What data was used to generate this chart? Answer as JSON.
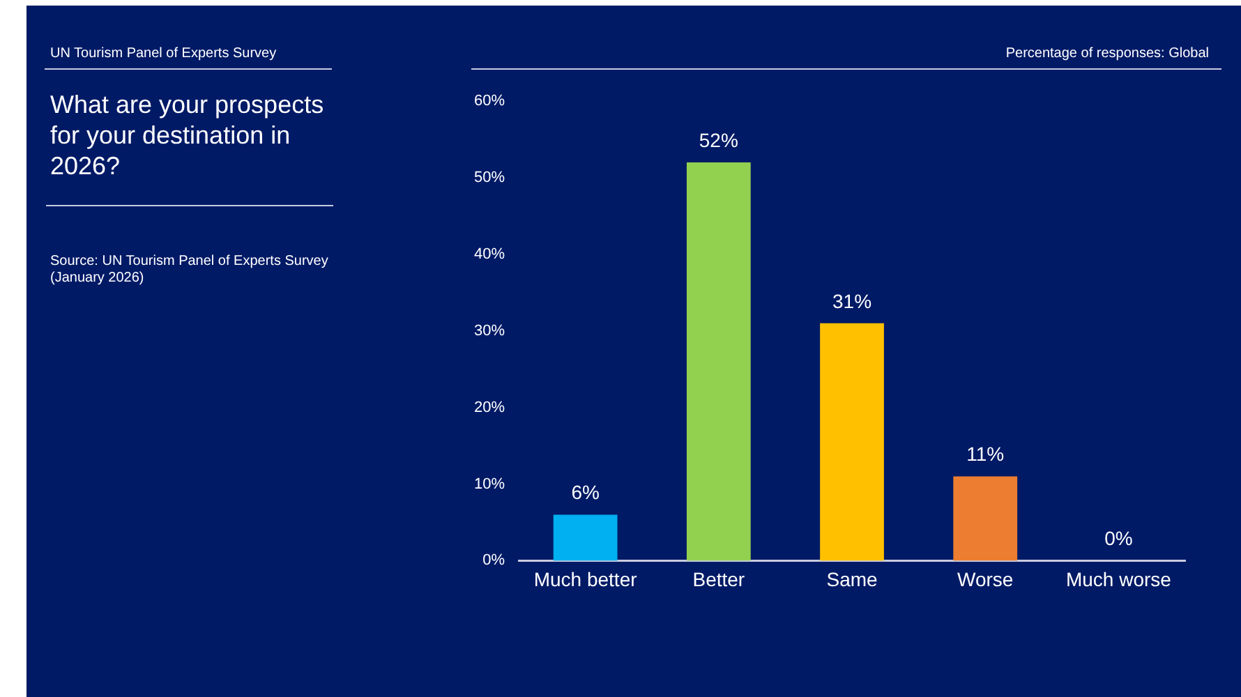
{
  "chart_data": {
    "type": "bar",
    "title": "What are your prospects for your destination in 2026?",
    "annotations": [
      "UN Tourism Panel of Experts Survey",
      "Percentage of responses: Global",
      "Source: UN Tourism Panel of Experts Survey (January 2026)"
    ],
    "categories": [
      "Much better",
      "Better",
      "Same",
      "Worse",
      "Much worse"
    ],
    "values": [
      6,
      52,
      31,
      11,
      0
    ],
    "colors": [
      "#00b0f0",
      "#92d050",
      "#ffc000",
      "#ed7d31",
      "#ffffff"
    ],
    "ylim": [
      0,
      60
    ],
    "yticks": [
      {
        "value": 0,
        "label": "0%"
      },
      {
        "value": 10,
        "label": "10%"
      },
      {
        "value": 20,
        "label": "20%"
      },
      {
        "value": 30,
        "label": "30%"
      },
      {
        "value": 40,
        "label": "40%"
      },
      {
        "value": 50,
        "label": "50%"
      },
      {
        "value": 60,
        "label": "60%"
      }
    ],
    "value_labels": [
      "6%",
      "52%",
      "31%",
      "11%",
      "0%"
    ],
    "grid": false,
    "legend": false
  }
}
